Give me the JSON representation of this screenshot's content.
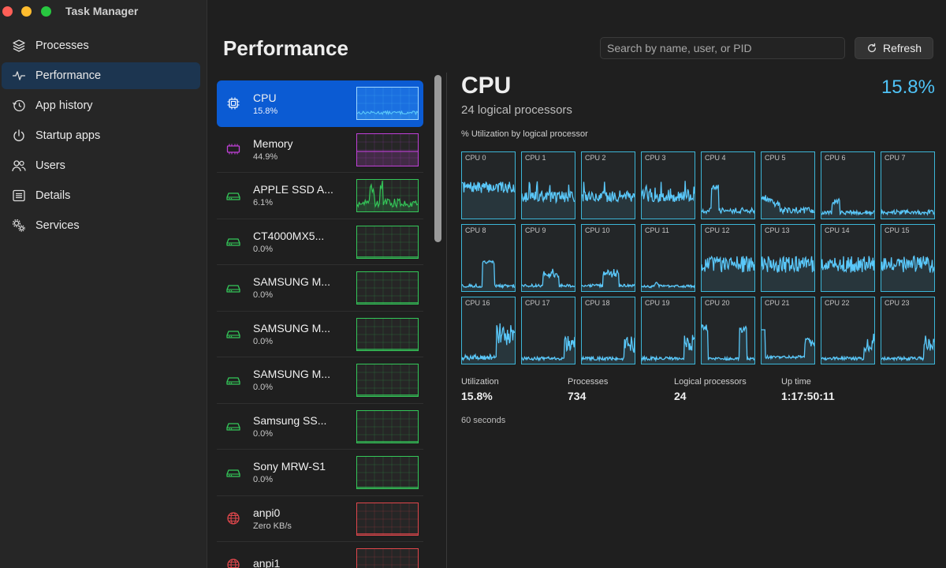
{
  "app": {
    "title": "Task Manager"
  },
  "nav": [
    {
      "label": "Processes",
      "icon": "layers-icon",
      "active": false
    },
    {
      "label": "Performance",
      "icon": "pulse-icon",
      "active": true
    },
    {
      "label": "App history",
      "icon": "history-icon",
      "active": false
    },
    {
      "label": "Startup apps",
      "icon": "power-icon",
      "active": false
    },
    {
      "label": "Users",
      "icon": "users-icon",
      "active": false
    },
    {
      "label": "Details",
      "icon": "list-icon",
      "active": false
    },
    {
      "label": "Services",
      "icon": "gears-icon",
      "active": false
    }
  ],
  "header": {
    "title": "Performance",
    "search_placeholder": "Search by name, user, or PID",
    "refresh_label": "Refresh"
  },
  "devices": [
    {
      "name": "CPU",
      "value": "15.8%",
      "kind": "cpu",
      "color": "#5ac8fa",
      "active": true
    },
    {
      "name": "Memory",
      "value": "44.9%",
      "kind": "memory",
      "color": "#c040d8",
      "active": false
    },
    {
      "name": "APPLE SSD A...",
      "value": "6.1%",
      "kind": "disk",
      "color": "#34c759",
      "active": false
    },
    {
      "name": "CT4000MX5...",
      "value": "0.0%",
      "kind": "disk",
      "color": "#34c759",
      "active": false
    },
    {
      "name": "SAMSUNG M...",
      "value": "0.0%",
      "kind": "disk",
      "color": "#34c759",
      "active": false
    },
    {
      "name": "SAMSUNG M...",
      "value": "0.0%",
      "kind": "disk",
      "color": "#34c759",
      "active": false
    },
    {
      "name": "SAMSUNG M...",
      "value": "0.0%",
      "kind": "disk",
      "color": "#34c759",
      "active": false
    },
    {
      "name": "Samsung SS...",
      "value": "0.0%",
      "kind": "disk",
      "color": "#34c759",
      "active": false
    },
    {
      "name": "Sony MRW-S1",
      "value": "0.0%",
      "kind": "disk",
      "color": "#34c759",
      "active": false
    },
    {
      "name": "anpi0",
      "value": "Zero KB/s",
      "kind": "network",
      "color": "#e0474c",
      "active": false
    },
    {
      "name": "anpi1",
      "value": "",
      "kind": "network",
      "color": "#e0474c",
      "active": false
    }
  ],
  "detail": {
    "title": "CPU",
    "subtitle": "24 logical processors",
    "value": "15.8%",
    "chart_caption": "% Utilization by logical processor",
    "processors": [
      "CPU 0",
      "CPU 1",
      "CPU 2",
      "CPU 3",
      "CPU 4",
      "CPU 5",
      "CPU 6",
      "CPU 7",
      "CPU 8",
      "CPU 9",
      "CPU 10",
      "CPU 11",
      "CPU 12",
      "CPU 13",
      "CPU 14",
      "CPU 15",
      "CPU 16",
      "CPU 17",
      "CPU 18",
      "CPU 19",
      "CPU 20",
      "CPU 21",
      "CPU 22",
      "CPU 23"
    ],
    "stats": [
      {
        "label": "Utilization",
        "value": "15.8%"
      },
      {
        "label": "Processes",
        "value": "734"
      },
      {
        "label": "Logical processors",
        "value": "24"
      },
      {
        "label": "Up time",
        "value": "1:17:50:11"
      }
    ],
    "window_note": "60 seconds"
  },
  "colors": {
    "accent": "#0b5bd3",
    "cpu_line": "#5ac8fa",
    "cpu_border": "#3cb6d8"
  }
}
